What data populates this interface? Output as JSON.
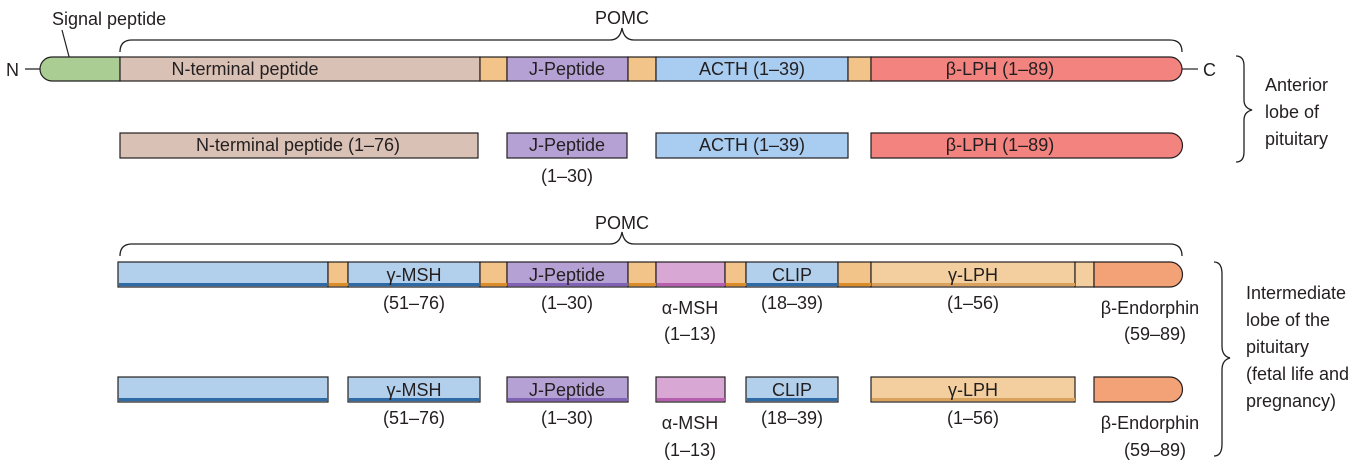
{
  "colors": {
    "signal": "#a9cd93",
    "n_terminal": "#d9c1b5",
    "j_peptide": "#b6a1d4",
    "acth": "#a9cdf0",
    "lph": "#f2837f",
    "msh_blue": "#b2d0ec",
    "alpha_msh": "#d8a7d4",
    "gamma_lph": "#f3cf9f",
    "endorphin": "#f3a277",
    "linker": "#f3c489",
    "outline": "#231f20"
  },
  "labels": {
    "signal_peptide": "Signal peptide",
    "pomc_top": "POMC",
    "pomc_bottom": "POMC",
    "n_end": "N",
    "c_end": "C",
    "anterior": [
      "Anterior",
      "lobe of",
      "pituitary"
    ],
    "intermediate": [
      "Intermediate",
      "lobe of the",
      "pituitary",
      "(fetal life and",
      "pregnancy)"
    ]
  },
  "anterior_precursor": {
    "n_terminal": "N-terminal peptide",
    "j_peptide": "J-Peptide",
    "acth": "ACTH (1–39)",
    "lph": "β-LPH (1–89)"
  },
  "anterior_products": {
    "n_terminal": "N-terminal peptide (1–76)",
    "j_peptide": "J-Peptide",
    "j_peptide_range": "(1–30)",
    "acth": "ACTH (1–39)",
    "lph": "β-LPH (1–89)"
  },
  "intermediate_precursor": {
    "gamma_msh": "γ-MSH",
    "gamma_msh_range": "(51–76)",
    "j_peptide": "J-Peptide",
    "j_peptide_range": "(1–30)",
    "alpha_msh": "α-MSH",
    "alpha_msh_range": "(1–13)",
    "clip": "CLIP",
    "clip_range": "(18–39)",
    "gamma_lph": "γ-LPH",
    "gamma_lph_range": "(1–56)",
    "endorphin": "β-Endorphin",
    "endorphin_range": "(59–89)"
  },
  "intermediate_products": {
    "gamma_msh": "γ-MSH",
    "gamma_msh_range": "(51–76)",
    "j_peptide": "J-Peptide",
    "j_peptide_range": "(1–30)",
    "alpha_msh": "α-MSH",
    "alpha_msh_range": "(1–13)",
    "clip": "CLIP",
    "clip_range": "(18–39)",
    "gamma_lph": "γ-LPH",
    "gamma_lph_range": "(1–56)",
    "endorphin": "β-Endorphin",
    "endorphin_range": "(59–89)"
  }
}
